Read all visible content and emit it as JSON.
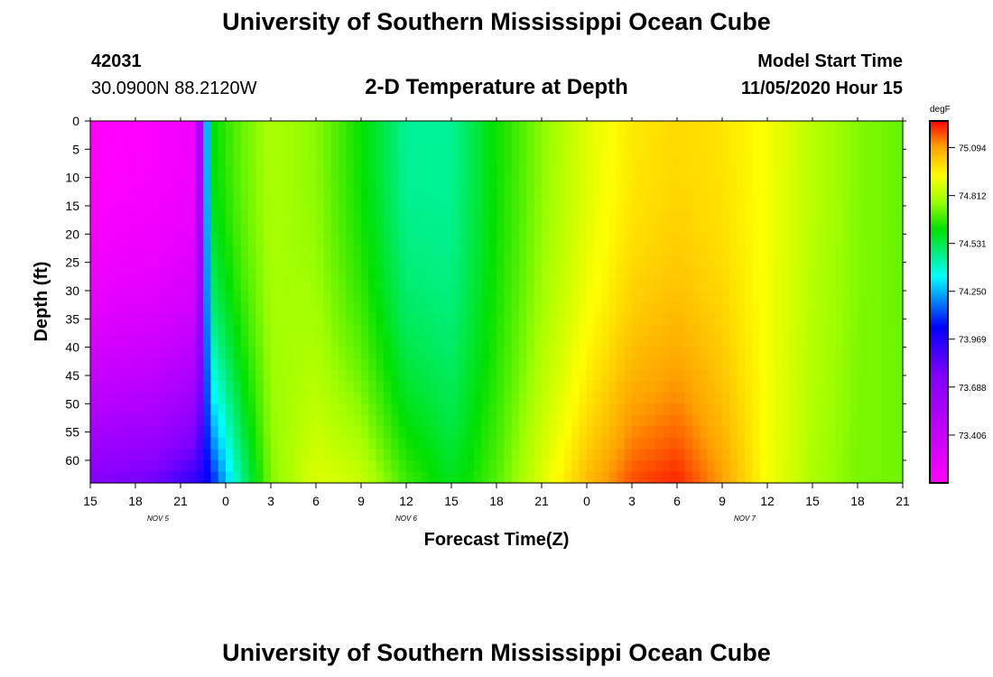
{
  "header": {
    "title": "University of Southern Mississippi Ocean Cube",
    "station_id": "42031",
    "coordinates": "30.0900N 88.2120W",
    "plot_title": "2-D Temperature at Depth",
    "start_label": "Model Start Time",
    "start_value": "11/05/2020 Hour 15"
  },
  "footer": {
    "title": "University of Southern Mississippi Ocean Cube"
  },
  "chart_data": {
    "type": "heatmap",
    "title": "2-D Temperature at Depth",
    "xlabel": "Forecast Time(Z)",
    "ylabel": "Depth (ft)",
    "units": "degF",
    "xlim": [
      0,
      54
    ],
    "ylim": [
      0,
      64
    ],
    "x_tick_labels": [
      "15",
      "18",
      "21",
      "0",
      "3",
      "6",
      "9",
      "12",
      "15",
      "18",
      "21",
      "0",
      "3",
      "6",
      "9",
      "12",
      "15",
      "18",
      "21"
    ],
    "y_ticks": [
      0,
      5,
      10,
      15,
      20,
      25,
      30,
      35,
      40,
      45,
      50,
      55,
      60
    ],
    "day_labels": [
      {
        "label": "NOV 5",
        "hour": 4.5
      },
      {
        "label": "NOV 6",
        "hour": 21
      },
      {
        "label": "NOV 7",
        "hour": 43.5
      }
    ],
    "colorbar": {
      "label": "degF",
      "min": 73.125,
      "max": 75.25,
      "ticks": [
        73.406,
        73.688,
        73.969,
        74.25,
        74.531,
        74.812,
        75.094
      ]
    },
    "profile_hours": [
      0,
      4,
      7,
      8,
      10,
      12,
      15,
      18,
      21,
      24,
      27,
      30,
      33,
      36,
      39,
      42,
      45,
      48,
      51,
      54
    ],
    "temperature_upper": [
      73.12,
      73.15,
      73.2,
      74.6,
      74.72,
      74.8,
      74.76,
      74.62,
      74.45,
      74.45,
      74.62,
      74.76,
      74.88,
      74.97,
      75.0,
      74.98,
      74.92,
      74.82,
      74.75,
      74.72
    ],
    "temperature_lower": [
      73.75,
      73.8,
      73.95,
      74.05,
      74.45,
      74.75,
      74.88,
      74.85,
      74.68,
      74.58,
      74.7,
      74.88,
      75.05,
      75.18,
      75.22,
      75.1,
      74.92,
      74.8,
      74.74,
      74.73
    ]
  }
}
